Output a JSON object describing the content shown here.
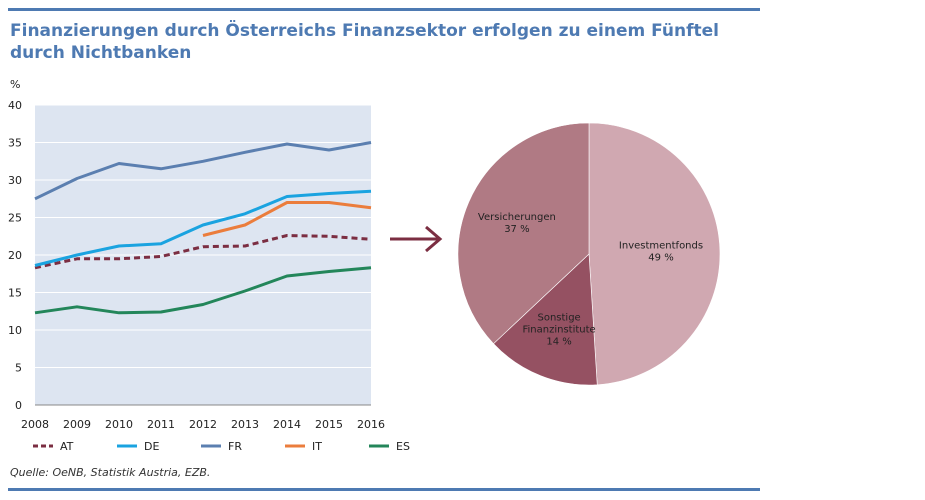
{
  "header": {
    "title": "Finanzierungen durch Österreichs Finanzsektor erfolgen zu einem Fünftel durch Nichtbanken"
  },
  "footer": {
    "source": "Quelle: OeNB, Statistik Austria, EZB."
  },
  "colors": {
    "rules": "#4e7ab2",
    "plot_background": "#dde5f1",
    "arrow": "#7b2e42"
  },
  "chart_data": [
    {
      "type": "line",
      "title": "",
      "xlabel": "",
      "ylabel": "%",
      "ylim": [
        0,
        40
      ],
      "yticks": [
        0,
        5,
        10,
        15,
        20,
        25,
        30,
        35,
        40
      ],
      "x": [
        "2008",
        "2009",
        "2010",
        "2011",
        "2012",
        "2013",
        "2014",
        "2015",
        "2016"
      ],
      "grid": "horizontal",
      "legend_position": "bottom",
      "series": [
        {
          "name": "AT",
          "color": "#7b2e42",
          "dash": true,
          "values": [
            18.3,
            19.5,
            19.5,
            19.8,
            21.1,
            21.2,
            22.6,
            22.5,
            22.1
          ]
        },
        {
          "name": "DE",
          "color": "#1aa3e0",
          "dash": false,
          "values": [
            18.6,
            20.0,
            21.2,
            21.5,
            24.0,
            25.5,
            27.8,
            28.2,
            28.5
          ]
        },
        {
          "name": "FR",
          "color": "#5b7fb0",
          "dash": false,
          "values": [
            27.5,
            30.2,
            32.2,
            31.5,
            32.5,
            33.7,
            34.8,
            34.0,
            35.0
          ]
        },
        {
          "name": "IT",
          "color": "#eb7d3c",
          "dash": false,
          "values": [
            null,
            null,
            null,
            null,
            22.6,
            24.0,
            27.0,
            27.0,
            26.3
          ]
        },
        {
          "name": "ES",
          "color": "#23865a",
          "dash": false,
          "values": [
            12.3,
            13.1,
            12.3,
            12.4,
            13.4,
            15.2,
            17.2,
            17.8,
            18.3
          ]
        }
      ]
    },
    {
      "type": "pie",
      "title": "",
      "slices": [
        {
          "label": "Investmentfonds",
          "value": 49,
          "value_label": "49 %",
          "color": "#d0a8b1"
        },
        {
          "label": "Sonstige Finanzinstitute",
          "label_lines": [
            "Sonstige",
            "Finanzinstitute"
          ],
          "value": 14,
          "value_label": "14 %",
          "color": "#955162"
        },
        {
          "label": "Versicherungen",
          "value": 37,
          "value_label": "37 %",
          "color": "#b07a84"
        }
      ]
    }
  ]
}
